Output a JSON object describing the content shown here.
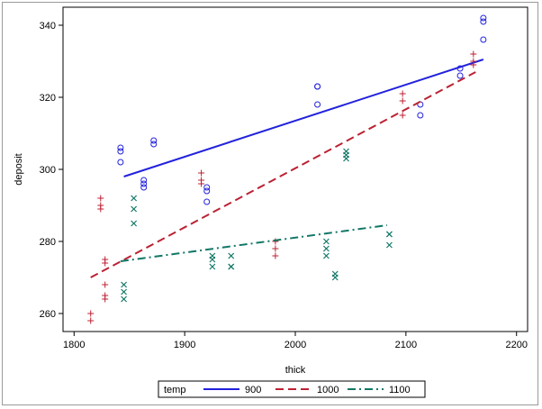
{
  "chart_data": {
    "type": "scatter",
    "xlabel": "thick",
    "ylabel": "deposit",
    "xlim": [
      1790,
      2210
    ],
    "ylim": [
      255,
      345
    ],
    "xticks": [
      1800,
      1900,
      2000,
      2100,
      2200
    ],
    "yticks": [
      260,
      280,
      300,
      320,
      340
    ],
    "grid": false,
    "legend": {
      "title": "temp",
      "placement": "bottom"
    },
    "series": [
      {
        "name": "900",
        "color": "#2222dd",
        "marker": "circle",
        "line_style": "solid",
        "points": [
          [
            1842,
            306
          ],
          [
            1842,
            305
          ],
          [
            1842,
            302
          ],
          [
            1863,
            297
          ],
          [
            1863,
            296
          ],
          [
            1863,
            295
          ],
          [
            1872,
            308
          ],
          [
            1872,
            307
          ],
          [
            1920,
            295
          ],
          [
            1920,
            294
          ],
          [
            1920,
            291
          ],
          [
            2020,
            323
          ],
          [
            2020,
            323
          ],
          [
            2020,
            318
          ],
          [
            2113,
            318
          ],
          [
            2113,
            315
          ],
          [
            2149,
            328
          ],
          [
            2149,
            326
          ],
          [
            2170,
            342
          ],
          [
            2170,
            341
          ],
          [
            2170,
            336
          ]
        ],
        "fit": [
          [
            1845,
            298
          ],
          [
            2170,
            330.5
          ]
        ]
      },
      {
        "name": "1000",
        "color": "#bb2233",
        "marker": "plus",
        "line_style": "dashed",
        "points": [
          [
            1815,
            260
          ],
          [
            1815,
            258
          ],
          [
            1824,
            292
          ],
          [
            1824,
            290
          ],
          [
            1824,
            289
          ],
          [
            1828,
            275
          ],
          [
            1828,
            274
          ],
          [
            1828,
            268
          ],
          [
            1828,
            265
          ],
          [
            1828,
            264
          ],
          [
            1915,
            299
          ],
          [
            1915,
            297
          ],
          [
            1915,
            296
          ],
          [
            1982,
            280
          ],
          [
            1982,
            278
          ],
          [
            1982,
            276
          ],
          [
            2097,
            321
          ],
          [
            2097,
            319
          ],
          [
            2097,
            315
          ],
          [
            2161,
            332
          ],
          [
            2161,
            330
          ],
          [
            2161,
            329
          ]
        ],
        "fit": [
          [
            1815,
            270
          ],
          [
            2163,
            327
          ]
        ]
      },
      {
        "name": "1100",
        "color": "#117766",
        "marker": "x",
        "line_style": "dashdot",
        "points": [
          [
            1845,
            268
          ],
          [
            1845,
            266
          ],
          [
            1845,
            264
          ],
          [
            1854,
            292
          ],
          [
            1854,
            289
          ],
          [
            1854,
            285
          ],
          [
            1925,
            276
          ],
          [
            1925,
            275
          ],
          [
            1925,
            273
          ],
          [
            1942,
            276
          ],
          [
            1942,
            273
          ],
          [
            1942,
            273
          ],
          [
            2028,
            280
          ],
          [
            2028,
            278
          ],
          [
            2028,
            276
          ],
          [
            2036,
            271
          ],
          [
            2036,
            270
          ],
          [
            2046,
            305
          ],
          [
            2046,
            304
          ],
          [
            2046,
            303
          ],
          [
            2085,
            282
          ],
          [
            2085,
            282
          ],
          [
            2085,
            279
          ]
        ],
        "fit": [
          [
            1842,
            274.5
          ],
          [
            2083,
            284.5
          ]
        ]
      }
    ]
  }
}
